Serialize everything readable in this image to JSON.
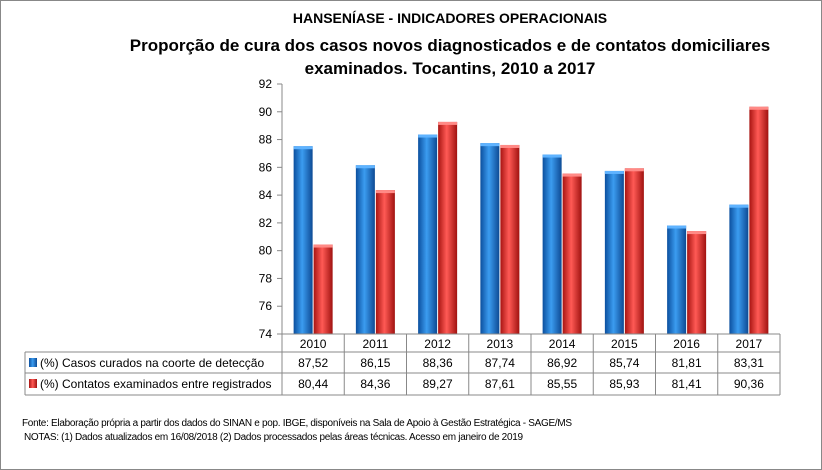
{
  "chart_data": {
    "type": "bar",
    "title": "HANSENÍASE - INDICADORES OPERACIONAIS",
    "subtitle": "Proporção de cura dos casos novos diagnosticados e de contatos domiciliares examinados. Tocantins, 2010 a 2017",
    "categories": [
      "2010",
      "2011",
      "2012",
      "2013",
      "2014",
      "2015",
      "2016",
      "2017"
    ],
    "series": [
      {
        "name": "(%) Casos curados na coorte de detecção",
        "color": "#1f77d4",
        "values": [
          87.52,
          86.15,
          88.36,
          87.74,
          86.92,
          85.74,
          81.81,
          83.31
        ],
        "labels": [
          "87,52",
          "86,15",
          "88,36",
          "87,74",
          "86,92",
          "85,74",
          "81,81",
          "83,31"
        ]
      },
      {
        "name": "(%) Contatos examinados entre registrados",
        "color": "#e8302e",
        "values": [
          80.44,
          84.36,
          89.27,
          87.61,
          85.55,
          85.93,
          81.41,
          90.36
        ],
        "labels": [
          "80,44",
          "84,36",
          "89,27",
          "87,61",
          "85,55",
          "85,93",
          "81,41",
          "90,36"
        ]
      }
    ],
    "ylim": [
      74,
      92
    ],
    "yticks": [
      74,
      76,
      78,
      80,
      82,
      84,
      86,
      88,
      90,
      92
    ],
    "grid": false,
    "legend": "data-table",
    "xlabel": "",
    "ylabel": ""
  },
  "footer": {
    "source": "Fonte:  Elaboração própria a partir dos dados do  SINAN  e  pop. IBGE, disponíveis na Sala de Apoio à Gestão Estratégica -  SAGE/MS",
    "notes": "NOTAS: (1) Dados atualizados em 16/08/2018 (2) Dados processados pelas áreas técnicas. Acesso em janeiro de 2019"
  }
}
